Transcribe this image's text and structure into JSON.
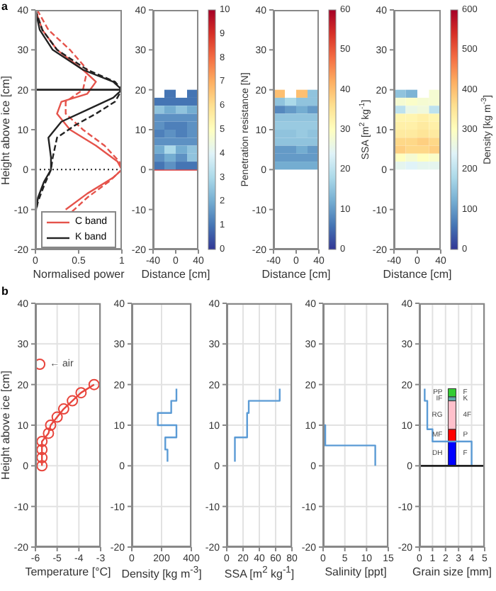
{
  "chart_data": [
    {
      "type": "line",
      "xlabel": "Normalised power",
      "ylabel": "Height above ice [cm]",
      "xlim": [
        0,
        1
      ],
      "xticks": [
        0,
        0.5,
        1
      ],
      "ylim": [
        -20,
        40
      ],
      "yticks": [
        -20,
        -10,
        0,
        10,
        20,
        30,
        40
      ],
      "legend": "bottom",
      "annotations": [
        "a"
      ],
      "ref_lines": [
        {
          "axis": "y",
          "value": 20,
          "color": "#222222",
          "line_style": "solid"
        },
        {
          "axis": "y",
          "value": 0,
          "color": "#222222",
          "line_style": "dotted"
        }
      ],
      "series": [
        {
          "name": "C band",
          "color": "#e5534b",
          "line_style": "solid",
          "x": [
            0,
            0.08,
            0.25,
            0.55,
            0.7,
            0.6,
            0.3,
            0.25,
            0.4,
            0.7,
            0.95,
            1,
            0.9,
            0.6,
            0.35
          ],
          "values": [
            40,
            35,
            30,
            25,
            22,
            19,
            17,
            14,
            10,
            6,
            2,
            0,
            -2,
            -6,
            -10
          ]
        },
        {
          "color": "#e5534b",
          "line_style": "dashed",
          "x": [
            0.02,
            0.15,
            0.4,
            0.6,
            0.55,
            0.35,
            0.35,
            0.55,
            0.8,
            0.97,
            1,
            0.85,
            0.6,
            0.4
          ],
          "values": [
            40,
            35,
            30,
            25,
            20,
            17,
            14,
            10,
            6,
            2,
            0,
            -3,
            -7,
            -11
          ]
        },
        {
          "name": "K band",
          "color": "#222222",
          "line_style": "solid",
          "x": [
            0,
            0.05,
            0.2,
            0.55,
            0.9,
            1,
            0.9,
            0.6,
            0.3,
            0.15,
            0.18,
            0.18,
            0.1,
            0.03,
            0
          ],
          "values": [
            40,
            35,
            30,
            25,
            22,
            20,
            18,
            15,
            12,
            8,
            3,
            0,
            -3,
            -7,
            -11
          ]
        },
        {
          "color": "#222222",
          "line_style": "dashed",
          "x": [
            0,
            0.08,
            0.25,
            0.6,
            0.92,
            1,
            0.92,
            0.7,
            0.45,
            0.25,
            0.2,
            0.18,
            0.1,
            0.03,
            0
          ],
          "values": [
            40,
            35,
            30,
            25,
            22,
            20,
            17,
            14,
            11,
            8,
            3,
            0,
            -4,
            -8,
            -11
          ]
        }
      ]
    },
    {
      "type": "scatter",
      "marker": "square",
      "xlabel": "Distance [cm]",
      "clabel": "Penetration resistance [N]",
      "xlim": [
        -40,
        40
      ],
      "xticks": [
        -40,
        0,
        40
      ],
      "ylim": [
        -20,
        40
      ],
      "yticks": [
        -20,
        -10,
        0,
        10,
        20,
        30,
        40
      ],
      "clim": [
        0,
        10
      ],
      "cticks": [
        0,
        1,
        2,
        3,
        4,
        5,
        6,
        7,
        8,
        9,
        10
      ],
      "ref_lines": [
        {
          "axis": "y",
          "value": 0,
          "color": "#e04040",
          "line_style": "solid"
        }
      ],
      "series": [
        {
          "x": [
            -10,
            30,
            -30,
            -10,
            10,
            30,
            -30,
            -10,
            10,
            30,
            -30,
            -10,
            10,
            30,
            -30,
            -10,
            10,
            30,
            -30,
            -10,
            10,
            30,
            -30,
            -10,
            10,
            30,
            -30,
            -10,
            10,
            30,
            -30,
            -10,
            10,
            30,
            -30,
            -10,
            10,
            30
          ],
          "values": [
            19,
            19,
            17,
            17,
            17,
            17,
            15,
            15,
            15,
            15,
            13,
            13,
            13,
            13,
            11,
            11,
            11,
            11,
            9,
            9,
            9,
            9,
            7,
            7,
            7,
            7,
            5,
            5,
            5,
            5,
            3,
            3,
            3,
            3,
            1,
            1,
            1,
            1
          ],
          "cvalues": [
            1,
            1,
            1,
            1,
            1,
            1,
            2.5,
            2,
            2.5,
            2,
            1.5,
            1.5,
            1.5,
            1.5,
            1.5,
            1.2,
            1.2,
            1.5,
            1.2,
            1.5,
            1.2,
            1.5,
            1.5,
            1.5,
            1.5,
            1.5,
            2,
            3,
            2,
            2.5,
            1.5,
            2,
            1.5,
            2.5,
            1,
            1.5,
            1,
            1
          ]
        }
      ]
    },
    {
      "type": "scatter",
      "marker": "square",
      "xlabel": "Distance [cm]",
      "clabel": "SSA [m$^{2}$ kg$^{-1}$]",
      "xlim": [
        -40,
        40
      ],
      "xticks": [
        -40,
        0,
        40
      ],
      "ylim": [
        -20,
        40
      ],
      "yticks": [
        -20,
        -10,
        0,
        10,
        20,
        30,
        40
      ],
      "clim": [
        0,
        60
      ],
      "cticks": [
        0,
        10,
        20,
        30,
        40,
        50,
        60
      ],
      "series": [
        {
          "x": [
            -30,
            10,
            30,
            -30,
            -10,
            10,
            30,
            -30,
            -10,
            10,
            30,
            -30,
            -10,
            10,
            30,
            -30,
            -10,
            10,
            30,
            -30,
            -10,
            10,
            30,
            -30,
            -10,
            10,
            30,
            -30,
            -10,
            10,
            30,
            -30,
            -10,
            10,
            30,
            -30,
            -10,
            10,
            30
          ],
          "values": [
            19,
            19,
            19,
            17,
            17,
            17,
            17,
            15,
            15,
            15,
            15,
            13,
            13,
            13,
            13,
            11,
            11,
            11,
            11,
            9,
            9,
            9,
            9,
            7,
            7,
            7,
            7,
            5,
            5,
            5,
            5,
            3,
            3,
            3,
            3,
            1,
            1,
            1,
            1
          ],
          "cvalues": [
            40,
            40,
            15,
            15,
            18,
            15,
            15,
            8,
            10,
            12,
            10,
            15,
            15,
            15,
            15,
            16,
            16,
            16,
            16,
            15,
            15,
            16,
            15,
            15,
            15,
            15,
            15,
            10,
            10,
            12,
            10,
            10,
            10,
            10,
            10,
            12,
            12,
            12,
            12
          ]
        }
      ]
    },
    {
      "type": "scatter",
      "marker": "square",
      "xlabel": "Distance [cm]",
      "clabel": "Density [kg m$^{-3}$]",
      "xlim": [
        -40,
        40
      ],
      "xticks": [
        -40,
        0,
        40
      ],
      "ylim": [
        -20,
        40
      ],
      "yticks": [
        -20,
        -10,
        0,
        10,
        20,
        30,
        40
      ],
      "clim": [
        0,
        600
      ],
      "cticks": [
        0,
        100,
        200,
        300,
        400,
        500,
        600
      ],
      "series": [
        {
          "x": [
            -30,
            -10,
            30,
            -30,
            -10,
            10,
            30,
            -30,
            -10,
            10,
            30,
            -30,
            -10,
            10,
            30,
            -30,
            -10,
            10,
            30,
            -30,
            -10,
            10,
            30,
            -30,
            -10,
            10,
            30,
            -30,
            -10,
            10,
            30,
            -30,
            -10,
            10,
            30,
            -30,
            -10,
            10,
            30
          ],
          "values": [
            19,
            19,
            19,
            17,
            17,
            17,
            17,
            15,
            15,
            15,
            15,
            13,
            13,
            13,
            13,
            11,
            11,
            11,
            11,
            9,
            9,
            9,
            9,
            7,
            7,
            7,
            7,
            5,
            5,
            5,
            5,
            3,
            3,
            3,
            3,
            1,
            1,
            1,
            1
          ],
          "cvalues": [
            150,
            130,
            280,
            280,
            290,
            280,
            280,
            200,
            260,
            270,
            200,
            320,
            320,
            330,
            320,
            330,
            330,
            340,
            330,
            340,
            340,
            350,
            340,
            370,
            370,
            380,
            370,
            380,
            370,
            370,
            380,
            300,
            280,
            300,
            290,
            250,
            240,
            250,
            250
          ]
        }
      ]
    },
    {
      "type": "line",
      "xlabel": "Temperature [°C]",
      "ylabel": "Height above ice [cm]",
      "xlim": [
        -6,
        -3
      ],
      "xticks": [
        -6,
        -5,
        -4,
        -3
      ],
      "ylim": [
        -20,
        40
      ],
      "yticks": [
        -20,
        -10,
        0,
        10,
        20,
        30,
        40
      ],
      "grid": true,
      "marker": "circle",
      "annotations": [
        "b",
        {
          "text": "← air",
          "x": -5.8,
          "y": 25
        }
      ],
      "series": [
        {
          "color": "#e8453c",
          "x": [
            -5.7,
            -5.7,
            -5.7,
            -5.7,
            -5.4,
            -5.3,
            -5,
            -4.7,
            -4.3,
            -3.9,
            -3.3
          ],
          "values": [
            0,
            2,
            4,
            6,
            8,
            10,
            12,
            14,
            16,
            18,
            20
          ]
        },
        {
          "type": "scatter",
          "color": "#e8453c",
          "x": [
            -5.8
          ],
          "values": [
            25
          ]
        }
      ]
    },
    {
      "type": "line",
      "xlabel": "Density [kg m$^{-3}$]",
      "xlim": [
        0,
        400
      ],
      "xticks": [
        0,
        200,
        400
      ],
      "ylim": [
        -20,
        40
      ],
      "yticks": [
        -20,
        -10,
        0,
        10,
        20,
        30,
        40
      ],
      "grid": true,
      "series": [
        {
          "color": "#5b9bd5",
          "x": [
            240,
            240,
            225,
            225,
            300,
            300,
            175,
            175,
            265,
            265,
            300,
            300
          ],
          "values": [
            1,
            4,
            4,
            7,
            7,
            10,
            10,
            13,
            13,
            16,
            16,
            19
          ]
        }
      ]
    },
    {
      "type": "line",
      "xlabel": "SSA [m$^{2}$ kg$^{-1}$]",
      "xlim": [
        0,
        80
      ],
      "xticks": [
        0,
        20,
        40,
        60,
        80
      ],
      "ylim": [
        -20,
        40
      ],
      "yticks": [
        -20,
        -10,
        0,
        10,
        20,
        30,
        40
      ],
      "grid": true,
      "series": [
        {
          "color": "#5b9bd5",
          "x": [
            10,
            10,
            25,
            25,
            27,
            27,
            65,
            65
          ],
          "values": [
            1,
            7,
            7,
            13,
            13,
            16,
            16,
            19
          ]
        }
      ]
    },
    {
      "type": "line",
      "xlabel": "Salinity [ppt]",
      "xlim": [
        0,
        15
      ],
      "xticks": [
        0,
        5,
        10,
        15
      ],
      "ylim": [
        -20,
        40
      ],
      "yticks": [
        -20,
        -10,
        0,
        10,
        20,
        30,
        40
      ],
      "grid": true,
      "series": [
        {
          "color": "#5b9bd5",
          "x": [
            12,
            12,
            0.5,
            0.5,
            0,
            0
          ],
          "values": [
            0,
            5,
            5,
            10,
            10,
            20
          ]
        }
      ]
    },
    {
      "type": "line",
      "xlabel": "Grain size [mm]",
      "xlim": [
        0,
        5
      ],
      "xticks": [
        0,
        1,
        2,
        3,
        4,
        5
      ],
      "ylim": [
        -20,
        40
      ],
      "yticks": [
        -20,
        -10,
        0,
        10,
        20,
        30,
        40
      ],
      "grid": true,
      "stacked": true,
      "ref_lines": [
        {
          "axis": "y",
          "value": 0,
          "color": "#222222",
          "line_style": "solid"
        }
      ],
      "annotations": [
        "F",
        "P",
        "4F",
        "K",
        "F"
      ],
      "series": [
        {
          "color": "#5b9bd5",
          "x": [
            4,
            4,
            1,
            1,
            0.6,
            0.6,
            0.4,
            0.4
          ],
          "values": [
            0,
            6,
            6,
            9,
            9,
            16,
            16,
            19
          ]
        },
        {
          "type": "bar",
          "name": "DH",
          "x": [
            2.5
          ],
          "values": [
            6
          ],
          "color": "#0000ff"
        },
        {
          "type": "bar",
          "name": "MF",
          "x": [
            2.5
          ],
          "values": [
            3
          ],
          "color": "#ff0000"
        },
        {
          "type": "bar",
          "name": "RG",
          "x": [
            2.5
          ],
          "values": [
            7
          ],
          "color": "#ffc0cb"
        },
        {
          "type": "bar",
          "name": "IF",
          "x": [
            2.5
          ],
          "values": [
            1
          ],
          "color": "#5fa8a8"
        },
        {
          "type": "bar",
          "name": "PP",
          "x": [
            2.5
          ],
          "values": [
            2
          ],
          "color": "#33cc33"
        }
      ]
    }
  ]
}
